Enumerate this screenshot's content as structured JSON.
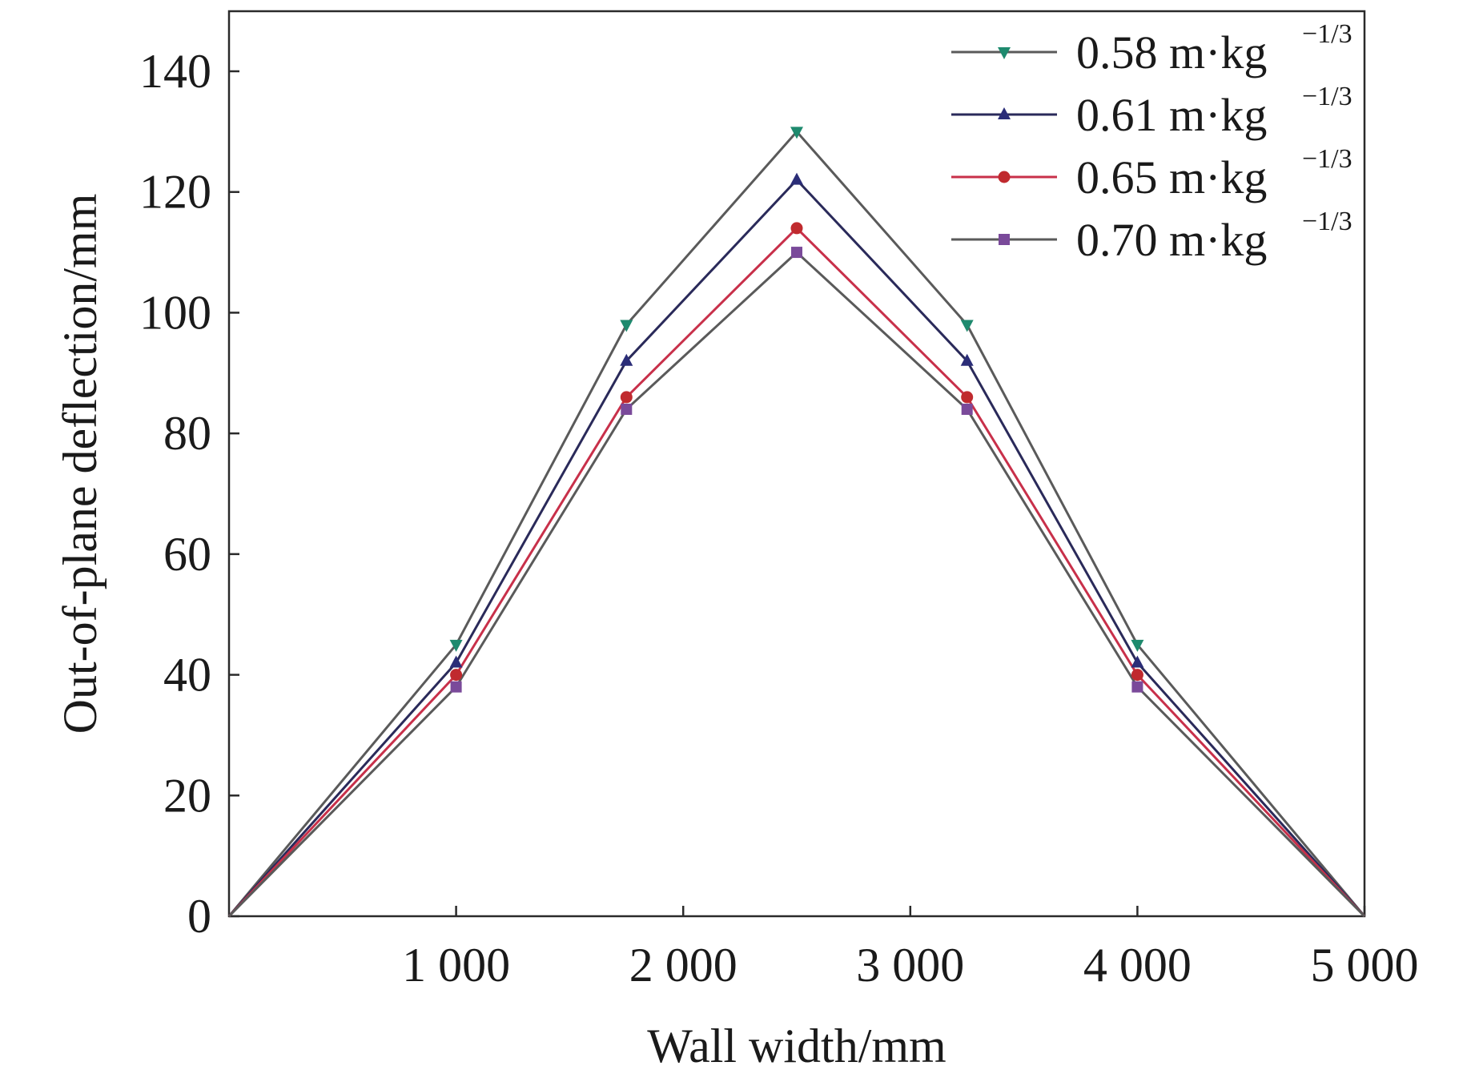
{
  "chart_data": {
    "type": "line",
    "title": "",
    "xlabel": "Wall width/mm",
    "ylabel": "Out-of-plane deflection/mm",
    "xlim": [
      0,
      5000
    ],
    "ylim": [
      0,
      150
    ],
    "x": [
      0,
      1000,
      1750,
      2500,
      3250,
      4000,
      5000
    ],
    "xticks": [
      1000,
      2000,
      3000,
      4000,
      5000
    ],
    "xtick_labels": [
      "1 000",
      "2 000",
      "3 000",
      "4 000",
      "5 000"
    ],
    "yticks": [
      0,
      20,
      40,
      60,
      80,
      100,
      120,
      140
    ],
    "ytick_labels": [
      "0",
      "20",
      "40",
      "60",
      "80",
      "100",
      "120",
      "140"
    ],
    "grid": false,
    "legend_position": "top-right",
    "series": [
      {
        "name": "0.58 m·kg",
        "unit_exp": "−1/3",
        "marker": "triangle-down",
        "line_color": "#5a5a5a",
        "marker_color": "#1e8a6e",
        "values": [
          0,
          45,
          98,
          130,
          98,
          45,
          0
        ]
      },
      {
        "name": "0.61 m·kg",
        "unit_exp": "−1/3",
        "marker": "triangle-up",
        "line_color": "#2a2a5a",
        "marker_color": "#2b2d78",
        "values": [
          0,
          42,
          92,
          122,
          92,
          42,
          0
        ]
      },
      {
        "name": "0.65 m·kg",
        "unit_exp": "−1/3",
        "marker": "circle",
        "line_color": "#c8304a",
        "marker_color": "#c02a2e",
        "values": [
          0,
          40,
          86,
          114,
          86,
          40,
          0
        ]
      },
      {
        "name": "0.70 m·kg",
        "unit_exp": "−1/3",
        "marker": "square",
        "line_color": "#5a5a5a",
        "marker_color": "#7a4a9a",
        "values": [
          0,
          38,
          84,
          110,
          84,
          38,
          0
        ]
      }
    ]
  }
}
